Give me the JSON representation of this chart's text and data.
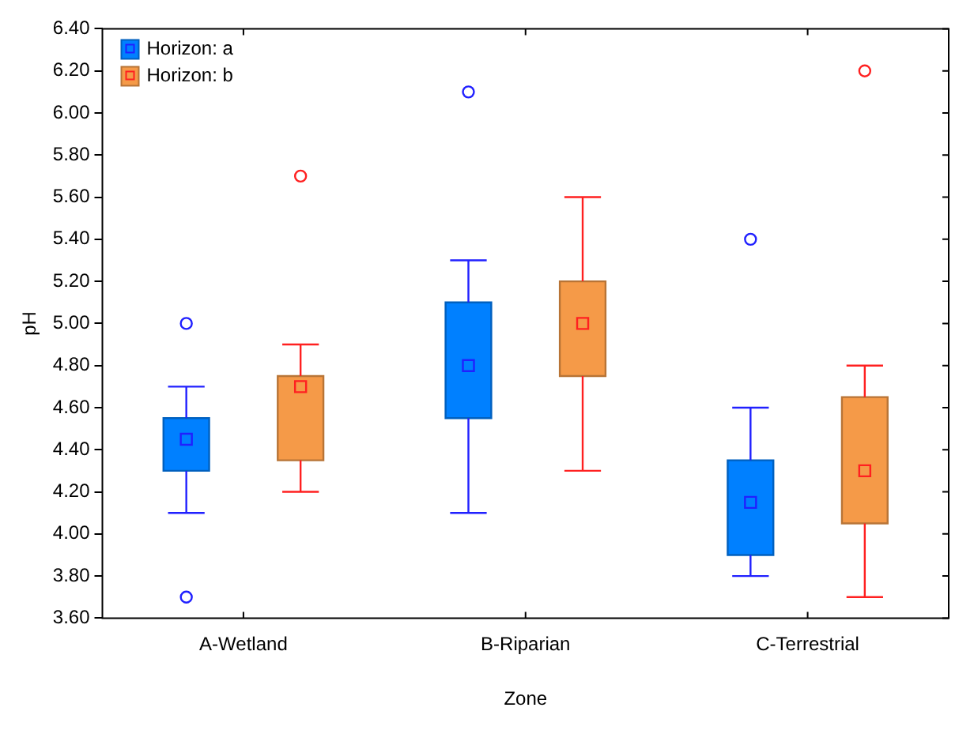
{
  "chart_data": {
    "type": "box",
    "xlabel": "Zone",
    "ylabel": "pH",
    "categories": [
      "A-Wetland",
      "B-Riparian",
      "C-Terrestrial"
    ],
    "ylim": [
      3.6,
      6.4
    ],
    "yticks": [
      {
        "value": 3.6,
        "label": "3.60"
      },
      {
        "value": 3.8,
        "label": "3.80"
      },
      {
        "value": 4.0,
        "label": "4.00"
      },
      {
        "value": 4.2,
        "label": "4.20"
      },
      {
        "value": 4.4,
        "label": "4.40"
      },
      {
        "value": 4.6,
        "label": "4.60"
      },
      {
        "value": 4.8,
        "label": "4.80"
      },
      {
        "value": 5.0,
        "label": "5.00"
      },
      {
        "value": 5.2,
        "label": "5.20"
      },
      {
        "value": 5.4,
        "label": "5.40"
      },
      {
        "value": 5.6,
        "label": "5.60"
      },
      {
        "value": 5.8,
        "label": "5.80"
      },
      {
        "value": 6.0,
        "label": "6.00"
      },
      {
        "value": 6.2,
        "label": "6.20"
      },
      {
        "value": 6.4,
        "label": "6.40"
      }
    ],
    "grid": false,
    "legend": "top left",
    "series": [
      {
        "name": "Horizon: a",
        "color": "#0080ff",
        "boxes": [
          {
            "low": 4.1,
            "q1": 4.3,
            "median": 4.45,
            "q3": 4.55,
            "high": 4.7,
            "outliers": [
              5.0,
              3.7
            ]
          },
          {
            "low": 4.1,
            "q1": 4.55,
            "median": 4.8,
            "q3": 5.1,
            "high": 5.3,
            "outliers": [
              6.1
            ]
          },
          {
            "low": 3.8,
            "q1": 3.9,
            "median": 4.15,
            "q3": 4.35,
            "high": 4.6,
            "outliers": [
              5.4
            ]
          }
        ]
      },
      {
        "name": "Horizon: b",
        "color": "#f59a48",
        "boxes": [
          {
            "low": 4.2,
            "q1": 4.35,
            "median": 4.7,
            "q3": 4.75,
            "high": 4.9,
            "outliers": [
              5.7
            ]
          },
          {
            "low": 4.3,
            "q1": 4.75,
            "median": 5.0,
            "q3": 5.2,
            "high": 5.6
          },
          {
            "low": 3.7,
            "q1": 4.05,
            "median": 4.3,
            "q3": 4.65,
            "high": 4.8,
            "outliers": [
              6.2
            ]
          }
        ]
      }
    ]
  }
}
